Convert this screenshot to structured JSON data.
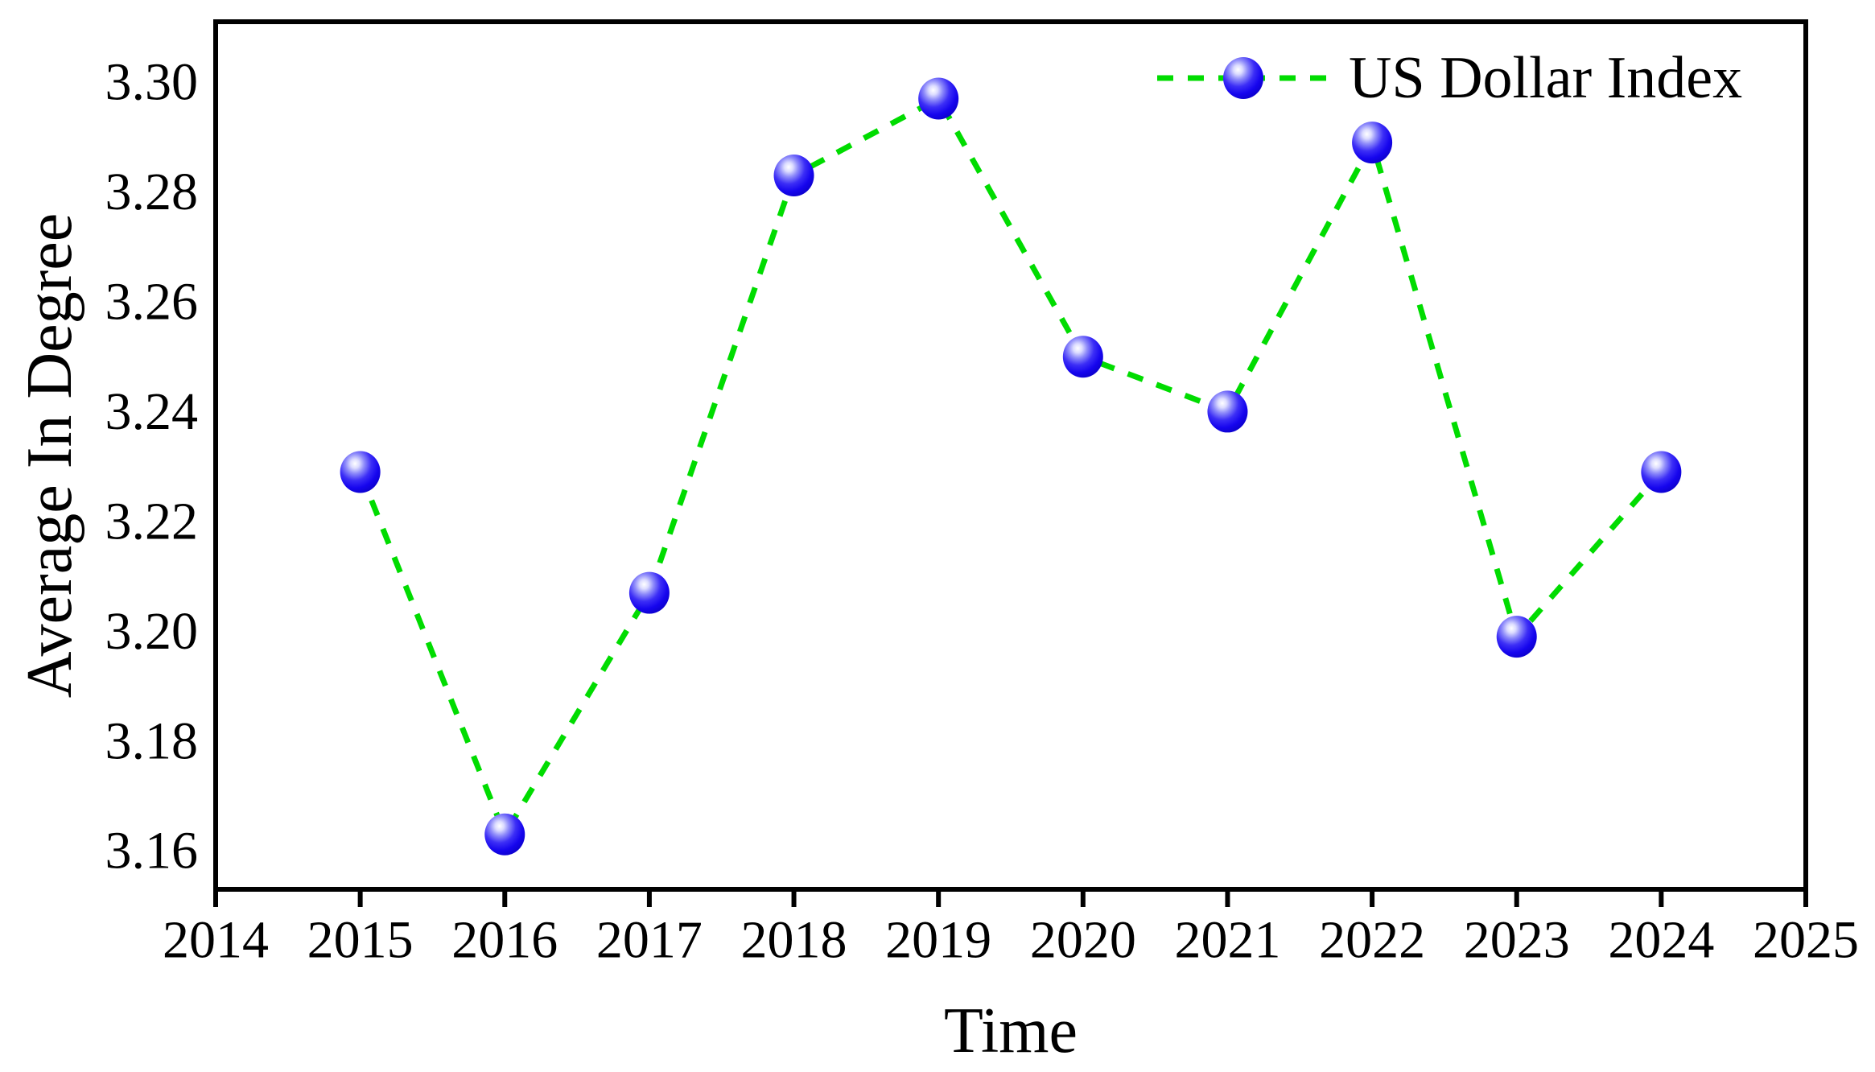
{
  "figure": {
    "background": "#ffffff",
    "border_color": "#000000"
  },
  "chart_data": {
    "type": "line",
    "title": "",
    "xlabel": "Time",
    "ylabel": "Average In Degree",
    "grid": false,
    "legend": {
      "label": "US Dollar Index",
      "position": "upper-right"
    },
    "xlim": [
      2014,
      2025
    ],
    "ylim": [
      3.153,
      3.311
    ],
    "x_ticks": [
      {
        "value": 2014,
        "label": "2014"
      },
      {
        "value": 2015,
        "label": "2015"
      },
      {
        "value": 2016,
        "label": "2016"
      },
      {
        "value": 2017,
        "label": "2017"
      },
      {
        "value": 2018,
        "label": "2018"
      },
      {
        "value": 2019,
        "label": "2019"
      },
      {
        "value": 2020,
        "label": "2020"
      },
      {
        "value": 2021,
        "label": "2021"
      },
      {
        "value": 2022,
        "label": "2022"
      },
      {
        "value": 2023,
        "label": "2023"
      },
      {
        "value": 2024,
        "label": "2024"
      },
      {
        "value": 2025,
        "label": "2025"
      }
    ],
    "y_ticks": [
      {
        "value": 3.16,
        "label": "3.16"
      },
      {
        "value": 3.18,
        "label": "3.18"
      },
      {
        "value": 3.2,
        "label": "3.20"
      },
      {
        "value": 3.22,
        "label": "3.22"
      },
      {
        "value": 3.24,
        "label": "3.24"
      },
      {
        "value": 3.26,
        "label": "3.26"
      },
      {
        "value": 3.28,
        "label": "3.28"
      },
      {
        "value": 3.3,
        "label": "3.30"
      }
    ],
    "series": [
      {
        "name": "US Dollar Index",
        "x": [
          2015,
          2016,
          2017,
          2018,
          2019,
          2020,
          2021,
          2022,
          2023,
          2024
        ],
        "y": [
          3.229,
          3.163,
          3.207,
          3.283,
          3.297,
          3.25,
          3.24,
          3.289,
          3.199,
          3.229
        ],
        "line_color": "#00dc00",
        "line_style": "dashed",
        "marker_style": "sphere",
        "marker_color": "#1605ee"
      }
    ],
    "marker_gradient": [
      "#ffffff",
      "#dcdcff",
      "#8f8cfa",
      "#3c2ef6",
      "#1605ee",
      "#0a00c4"
    ]
  }
}
